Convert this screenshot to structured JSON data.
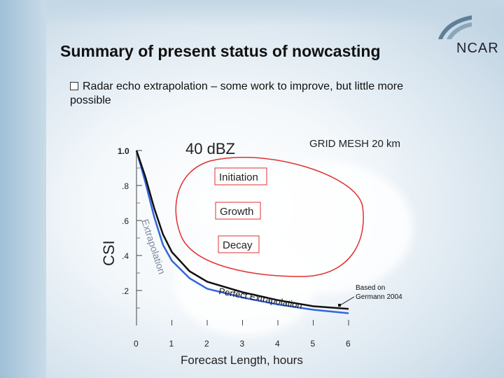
{
  "slide": {
    "title": "Summary of present status of nowcasting",
    "logo_text": "NCAR",
    "bullet": "Radar echo extrapolation – some work to improve, but little more possible"
  },
  "chart_data": {
    "type": "line",
    "title": "40 dBZ",
    "subtitle": "GRID MESH 20 km",
    "xlabel": "Forecast Length, hours",
    "ylabel": "CSI",
    "x_ticks": [
      "0",
      "1",
      "2",
      "3",
      "4",
      "5",
      "6"
    ],
    "y_ticks": [
      "1.0",
      ".8",
      ".6",
      ".4",
      ".2"
    ],
    "xlim": [
      0,
      6
    ],
    "ylim": [
      0,
      1.0
    ],
    "series": [
      {
        "name": "Extrapolation",
        "color": "#3366dd",
        "x": [
          0,
          0.25,
          0.5,
          0.75,
          1,
          1.5,
          2,
          3,
          4,
          5,
          6
        ],
        "y": [
          1.0,
          0.82,
          0.62,
          0.46,
          0.37,
          0.27,
          0.21,
          0.16,
          0.12,
          0.09,
          0.07
        ]
      },
      {
        "name": "Perfect Extrapolation",
        "color": "#111111",
        "x": [
          0,
          0.25,
          0.5,
          0.75,
          1,
          1.5,
          2,
          3,
          4,
          5,
          6
        ],
        "y": [
          1.0,
          0.85,
          0.67,
          0.52,
          0.42,
          0.31,
          0.25,
          0.19,
          0.145,
          0.11,
          0.095
        ]
      }
    ],
    "annotations": {
      "initiation": "Initiation",
      "growth": "Growth",
      "decay": "Decay",
      "based_on": "Based on",
      "source": "Germann 2004"
    },
    "colors": {
      "annotation_box": "#e03030",
      "circle": "#e03030"
    }
  }
}
